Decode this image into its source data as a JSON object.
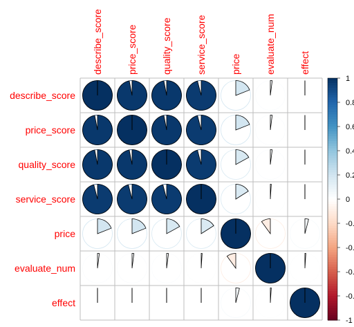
{
  "chart_data": {
    "type": "heatmap",
    "method": "pie",
    "variables": [
      "describe_score",
      "price_score",
      "quality_score",
      "service_score",
      "price",
      "evaluate_num",
      "effect"
    ],
    "matrix": [
      [
        1.0,
        0.97,
        0.97,
        0.96,
        0.19,
        0.02,
        0.0
      ],
      [
        0.97,
        1.0,
        0.97,
        0.96,
        0.19,
        0.02,
        0.0
      ],
      [
        0.97,
        0.97,
        1.0,
        0.96,
        0.17,
        0.02,
        0.0
      ],
      [
        0.96,
        0.96,
        0.96,
        1.0,
        0.16,
        0.01,
        0.0
      ],
      [
        0.19,
        0.19,
        0.17,
        0.16,
        1.0,
        -0.1,
        0.04
      ],
      [
        0.02,
        0.02,
        0.02,
        0.01,
        -0.1,
        1.0,
        0.01
      ],
      [
        0.0,
        0.0,
        0.0,
        0.0,
        0.04,
        0.01,
        1.0
      ]
    ],
    "colorbar": {
      "ticks": [
        "1",
        "0.8",
        "0.6",
        "0.4",
        "0.2",
        "0",
        "-0.2",
        "-0.4",
        "-0.6",
        "-0.8",
        "-1"
      ],
      "range": [
        -1,
        1
      ]
    },
    "colors": {
      "negative_strong": "#67001f",
      "positive_strong": "#053061",
      "mid": "#ffffff",
      "label": "#ff0000"
    }
  }
}
